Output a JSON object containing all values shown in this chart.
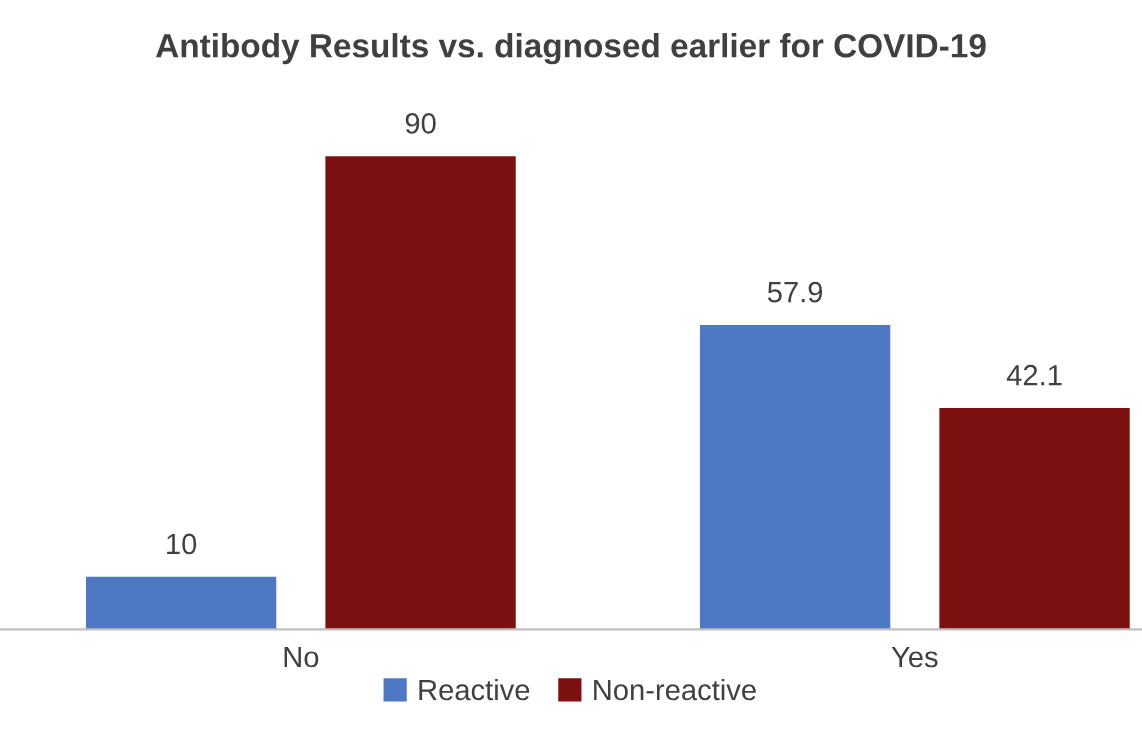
{
  "chart_data": {
    "type": "bar",
    "title": "Antibody Results vs. diagnosed earlier for COVID-19",
    "categories": [
      "No",
      "Yes"
    ],
    "series": [
      {
        "name": "Reactive",
        "color": "#4f78c4",
        "values": [
          10,
          57.9
        ]
      },
      {
        "name": "Non-reactive",
        "color": "#7d1010",
        "values": [
          90,
          42.1
        ]
      }
    ],
    "data_labels": true,
    "legend": "bottom"
  }
}
